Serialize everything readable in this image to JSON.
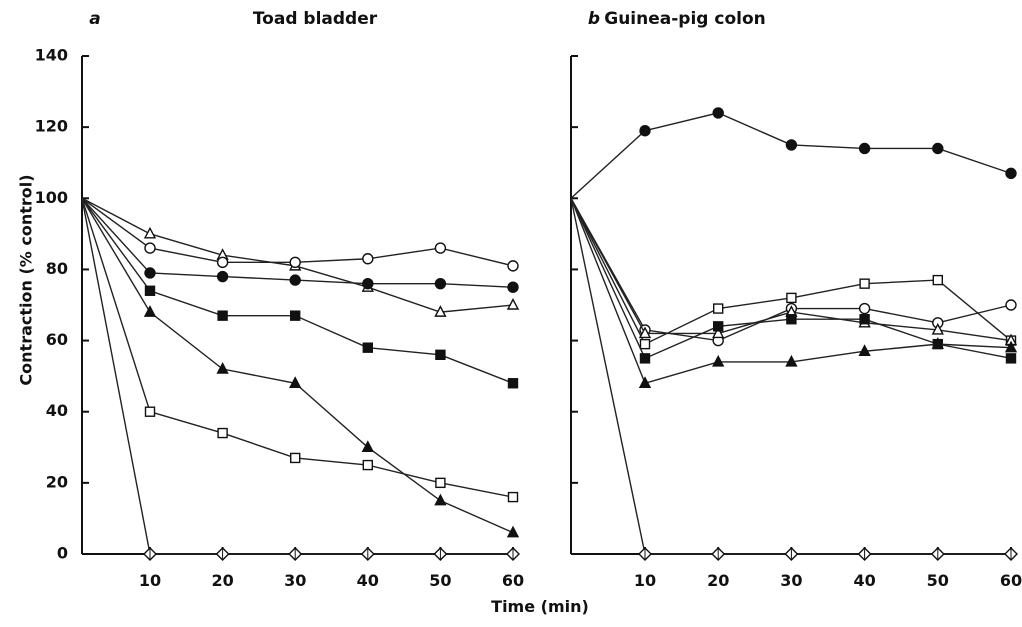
{
  "figure": {
    "xlabel": "Time (min)",
    "ylabel": "Contraction (% control)"
  },
  "chart_data": [
    {
      "type": "line",
      "panel_letter": "a",
      "title": "Toad bladder",
      "xlim": [
        0,
        60
      ],
      "ylim": [
        0,
        140
      ],
      "x_ticks": [
        10,
        20,
        30,
        40,
        50,
        60
      ],
      "y_ticks": [
        0,
        20,
        40,
        60,
        80,
        100,
        120,
        140
      ],
      "grid": false,
      "series": [
        {
          "marker": "open-triangle",
          "x": [
            0,
            10,
            20,
            30,
            40,
            50,
            60
          ],
          "y": [
            100,
            90,
            84,
            81,
            75,
            68,
            70
          ]
        },
        {
          "marker": "open-circle",
          "x": [
            0,
            10,
            20,
            30,
            40,
            50,
            60
          ],
          "y": [
            100,
            86,
            82,
            82,
            83,
            86,
            81
          ]
        },
        {
          "marker": "filled-circle",
          "x": [
            0,
            10,
            20,
            30,
            40,
            50,
            60
          ],
          "y": [
            100,
            79,
            78,
            77,
            76,
            76,
            75
          ]
        },
        {
          "marker": "filled-square",
          "x": [
            0,
            10,
            20,
            30,
            40,
            50,
            60
          ],
          "y": [
            100,
            74,
            67,
            67,
            58,
            56,
            48
          ]
        },
        {
          "marker": "filled-triangle",
          "x": [
            0,
            10,
            20,
            30,
            40,
            50,
            60
          ],
          "y": [
            100,
            68,
            52,
            48,
            30,
            15,
            6
          ]
        },
        {
          "marker": "open-square",
          "x": [
            0,
            10,
            20,
            30,
            40,
            50,
            60
          ],
          "y": [
            100,
            40,
            34,
            27,
            25,
            20,
            16
          ]
        },
        {
          "marker": "open-diamond",
          "x": [
            0,
            10,
            20,
            30,
            40,
            50,
            60
          ],
          "y": [
            100,
            0,
            0,
            0,
            0,
            0,
            0
          ]
        }
      ]
    },
    {
      "type": "line",
      "panel_letter": "b",
      "title": "Guinea-pig colon",
      "xlim": [
        0,
        60
      ],
      "ylim": [
        0,
        140
      ],
      "x_ticks": [
        10,
        20,
        30,
        40,
        50,
        60
      ],
      "y_ticks": [
        0,
        20,
        40,
        60,
        80,
        100,
        120,
        140
      ],
      "grid": false,
      "series": [
        {
          "marker": "filled-circle",
          "x": [
            0,
            10,
            20,
            30,
            40,
            50,
            60
          ],
          "y": [
            100,
            119,
            124,
            115,
            114,
            114,
            107
          ]
        },
        {
          "marker": "open-square",
          "x": [
            0,
            10,
            20,
            30,
            40,
            50,
            60
          ],
          "y": [
            100,
            59,
            69,
            72,
            76,
            77,
            60
          ]
        },
        {
          "marker": "open-circle",
          "x": [
            0,
            10,
            20,
            30,
            40,
            50,
            60
          ],
          "y": [
            100,
            63,
            60,
            69,
            69,
            65,
            70
          ]
        },
        {
          "marker": "open-triangle",
          "x": [
            0,
            10,
            20,
            30,
            40,
            50,
            60
          ],
          "y": [
            100,
            62,
            62,
            68,
            65,
            63,
            60
          ]
        },
        {
          "marker": "filled-square",
          "x": [
            0,
            10,
            20,
            30,
            40,
            50,
            60
          ],
          "y": [
            100,
            55,
            64,
            66,
            66,
            59,
            55
          ]
        },
        {
          "marker": "filled-triangle",
          "x": [
            0,
            10,
            20,
            30,
            40,
            50,
            60
          ],
          "y": [
            100,
            48,
            54,
            54,
            57,
            59,
            58
          ]
        },
        {
          "marker": "open-diamond",
          "x": [
            0,
            10,
            20,
            30,
            40,
            50,
            60
          ],
          "y": [
            100,
            0,
            0,
            0,
            0,
            0,
            0
          ]
        }
      ]
    }
  ]
}
